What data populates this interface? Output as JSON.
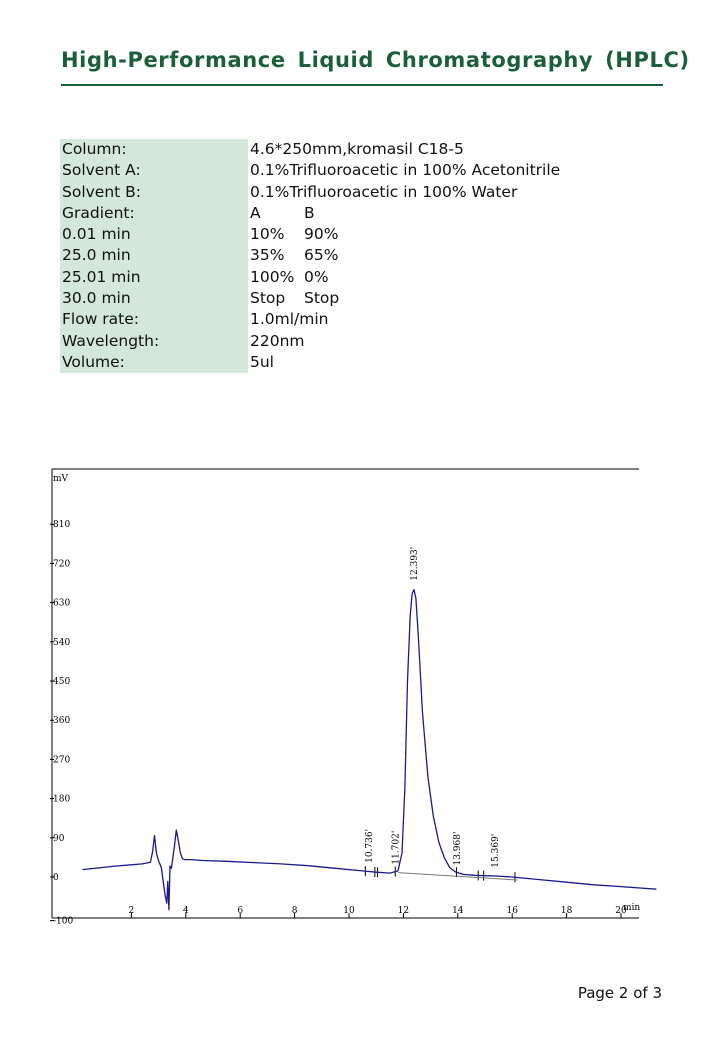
{
  "header": {
    "title": "High-Performance Liquid Chromatography (HPLC)"
  },
  "params": [
    {
      "label": "Column:",
      "value": "4.6*250mm,kromasil  C18-5"
    },
    {
      "label": "Solvent A:",
      "value": "0.1%Trifluoroacetic  in 100% Acetonitrile"
    },
    {
      "label": "Solvent B:",
      "value": "0.1%Trifluoroacetic  in 100% Water"
    },
    {
      "label": "Gradient:",
      "a": "A",
      "b": "B"
    },
    {
      "label": "0.01 min",
      "a": "10%",
      "b": "90%"
    },
    {
      "label": "25.0 min",
      "a": "35%",
      "b": "65%"
    },
    {
      "label": "25.01 min",
      "a": "100%",
      "b": "0%"
    },
    {
      "label": "30.0 min",
      "a": "Stop",
      "b": "Stop"
    },
    {
      "label": "Flow rate:",
      "value": "1.0ml/min"
    },
    {
      "label": "Wavelength:",
      "value": "220nm"
    },
    {
      "label": "Volume:",
      "value": "5ul"
    }
  ],
  "chart_data": {
    "type": "line",
    "ylabel": "mV",
    "xlabel": "min",
    "xlim": [
      0.2,
      21.6
    ],
    "ylim": [
      -100,
      920
    ],
    "x_ticks": [
      2,
      4,
      6,
      8,
      10,
      12,
      14,
      16,
      18,
      20
    ],
    "y_ticks": [
      -100,
      0,
      90,
      180,
      270,
      360,
      450,
      540,
      630,
      720,
      810
    ],
    "y_tick_labels": [
      "-100",
      "0",
      "90",
      "180",
      "270",
      "360",
      "450",
      "540",
      "630",
      "720",
      "810"
    ],
    "line_color": "#1a1a8c",
    "series": [
      {
        "x": [
          0.2,
          0.8,
          1.4,
          2.0,
          2.4,
          2.7,
          2.78,
          2.85,
          2.92,
          3.0,
          3.1,
          3.18,
          3.24,
          3.3,
          3.34,
          3.38,
          3.42,
          3.47,
          3.52,
          3.58,
          3.65,
          3.72,
          3.8,
          3.88,
          3.95,
          4.05,
          4.2,
          4.6,
          5.5,
          6.5,
          7.5,
          8.5,
          9.5,
          10.5,
          11.0,
          11.5,
          11.8,
          11.95,
          12.05,
          12.15,
          12.25,
          12.32,
          12.39,
          12.46,
          12.55,
          12.7,
          12.9,
          13.1,
          13.3,
          13.5,
          13.7,
          13.9,
          14.2,
          14.6,
          15.0,
          15.5,
          16.0,
          17.0,
          18.0,
          19.0,
          20.0,
          21.3
        ],
        "y": [
          17,
          21,
          25,
          28,
          30,
          34,
          58,
          95,
          55,
          37,
          22,
          -15,
          -42,
          -60,
          -10,
          -75,
          25,
          20,
          42,
          70,
          108,
          85,
          55,
          42,
          40,
          40,
          40,
          38,
          36,
          33,
          30,
          26,
          20,
          14,
          11,
          9,
          14,
          55,
          200,
          450,
          600,
          650,
          660,
          640,
          550,
          380,
          230,
          140,
          80,
          45,
          22,
          12,
          6,
          4,
          3,
          2,
          0,
          -6,
          -12,
          -18,
          -22,
          -28
        ]
      }
    ],
    "baseline": {
      "x": [
        11.8,
        16.2
      ],
      "y": [
        10,
        -7
      ],
      "color": "#777777"
    },
    "peaks": [
      {
        "rt": 10.736,
        "label": "10.736'",
        "y": 14
      },
      {
        "rt": 11.702,
        "label": "11.702'",
        "y": 10
      },
      {
        "rt": 12.393,
        "label": "12.393'",
        "y": 662
      },
      {
        "rt": 13.968,
        "label": "13.968'",
        "y": 8
      },
      {
        "rt": 15.369,
        "label": "15.369'",
        "y": 3
      }
    ],
    "marker_times": [
      10.6,
      10.95,
      11.05,
      11.7,
      13.95,
      14.75,
      14.95,
      16.1
    ]
  },
  "footer": {
    "page": "Page 2 of 3"
  }
}
